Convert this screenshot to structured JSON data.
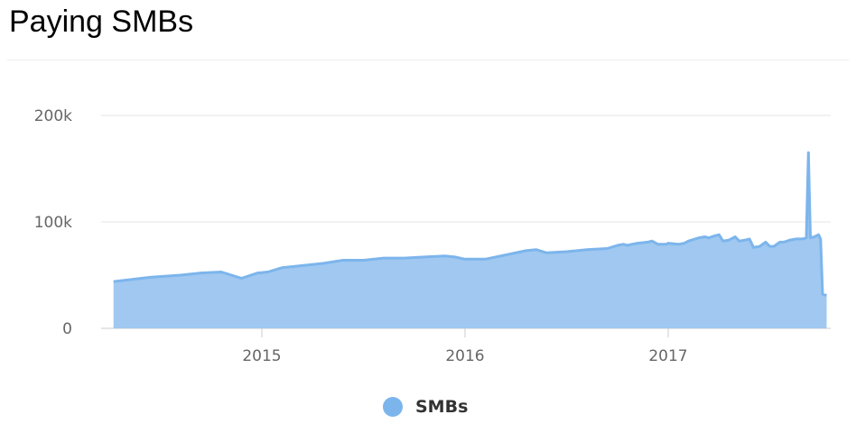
{
  "title": "Paying SMBs",
  "colors": {
    "series": "#7cb5ec",
    "fill": "#a0c8f0",
    "grid": "#e6e6e6",
    "axis_text": "#666666"
  },
  "chart_data": {
    "type": "area",
    "title": "Paying SMBs",
    "xlabel": "",
    "ylabel": "",
    "x_ticks": [
      2015,
      2016,
      2017
    ],
    "y_ticks": [
      0,
      100000,
      200000
    ],
    "y_tick_labels": [
      "0",
      "100k",
      "200k"
    ],
    "ylim": [
      0,
      200000
    ],
    "xlim": [
      2014.27,
      2017.78
    ],
    "grid": true,
    "legend": "bottom-center",
    "series": [
      {
        "name": "SMBs",
        "x": [
          2014.27,
          2014.45,
          2014.6,
          2014.7,
          2014.8,
          2014.9,
          2014.98,
          2015.03,
          2015.1,
          2015.2,
          2015.3,
          2015.4,
          2015.5,
          2015.6,
          2015.7,
          2015.8,
          2015.9,
          2015.95,
          2016.0,
          2016.1,
          2016.2,
          2016.3,
          2016.35,
          2016.4,
          2016.5,
          2016.6,
          2016.7,
          2016.75,
          2016.78,
          2016.8,
          2016.82,
          2016.85,
          2016.9,
          2016.92,
          2016.95,
          2016.99,
          2017.0,
          2017.05,
          2017.08,
          2017.1,
          2017.15,
          2017.18,
          2017.2,
          2017.23,
          2017.25,
          2017.27,
          2017.3,
          2017.33,
          2017.35,
          2017.38,
          2017.4,
          2017.42,
          2017.45,
          2017.48,
          2017.5,
          2017.52,
          2017.55,
          2017.57,
          2017.6,
          2017.63,
          2017.66,
          2017.68,
          2017.69,
          2017.7,
          2017.72,
          2017.74,
          2017.75,
          2017.76,
          2017.78
        ],
        "values": [
          44000,
          48000,
          50000,
          52000,
          53000,
          47000,
          52000,
          53000,
          57000,
          59000,
          61000,
          64000,
          64000,
          66000,
          66000,
          67000,
          68000,
          67000,
          65000,
          65000,
          69000,
          73000,
          74000,
          71000,
          72000,
          74000,
          75000,
          78000,
          79000,
          78000,
          79000,
          80000,
          81000,
          82000,
          79000,
          79000,
          80000,
          79000,
          80000,
          82000,
          85000,
          86000,
          85000,
          87000,
          88000,
          82000,
          83000,
          86000,
          82000,
          83000,
          84000,
          76000,
          77000,
          81000,
          77000,
          77000,
          81000,
          81000,
          83000,
          84000,
          84000,
          85000,
          165000,
          85000,
          86000,
          88000,
          84000,
          32000,
          31000
        ]
      }
    ]
  }
}
